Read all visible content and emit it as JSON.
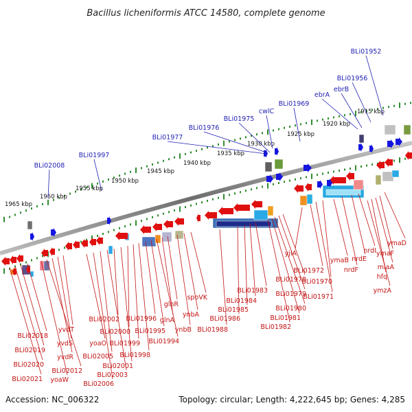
{
  "title": "Bacillus licheniformis ATCC 14580, complete genome",
  "footer": {
    "accession": "Accession: NC_006322",
    "summary": "Topology: circular; Length: 4,222,645 bp; Genes: 4,285"
  },
  "colors": {
    "forward_gene": "#1515e0",
    "reverse_gene": "#e01010",
    "tick": "#2e8b2e",
    "backbone": "#8c8c8c",
    "top_label": "#1f1fb4",
    "bottom_label": "#c21212"
  },
  "scale_labels": [
    "1915 kbp",
    "1920 kbp",
    "1925 kbp",
    "1930 kbp",
    "1935 kbp",
    "1940 kbp",
    "1945 kbp",
    "1950 kbp",
    "1955 kbp",
    "1960 kbp",
    "1965 kbp"
  ],
  "top_genes": [
    "BLi01952",
    "BLi01956",
    "ebrB",
    "ebrA",
    "BLi01969",
    "cwlC",
    "BLi01975",
    "BLi01976",
    "BLi01977",
    "BLi01997",
    "BLi02008"
  ],
  "bottom_genes": [
    "ymaD",
    "ymaF",
    "miaA",
    "hfq",
    "ymzA",
    "nrdI",
    "nrdE",
    "nrdF",
    "ymaB",
    "BLi01970",
    "BLi01971",
    "yjlA",
    "BLi01972",
    "BLi01978",
    "BLi01979",
    "BLi01980",
    "BLi01981",
    "BLi01982",
    "BLi01983",
    "BLi01984",
    "BLi01985",
    "BLi01986",
    "spoVK",
    "BLi01988",
    "ynbA",
    "ynbB",
    "glnR",
    "glnA",
    "BLi01994",
    "BLi01995",
    "BLi01996",
    "BLi01998",
    "BLi01999",
    "BLi02000",
    "BLi02001",
    "BLi02002",
    "BLi02003",
    "BLi02005",
    "BLi02006",
    "yoaO",
    "yvdT",
    "yvdS",
    "yvdR",
    "BLi02012",
    "yoaW",
    "BLi02018",
    "BLi02019",
    "BLi02020",
    "BLi02021"
  ]
}
